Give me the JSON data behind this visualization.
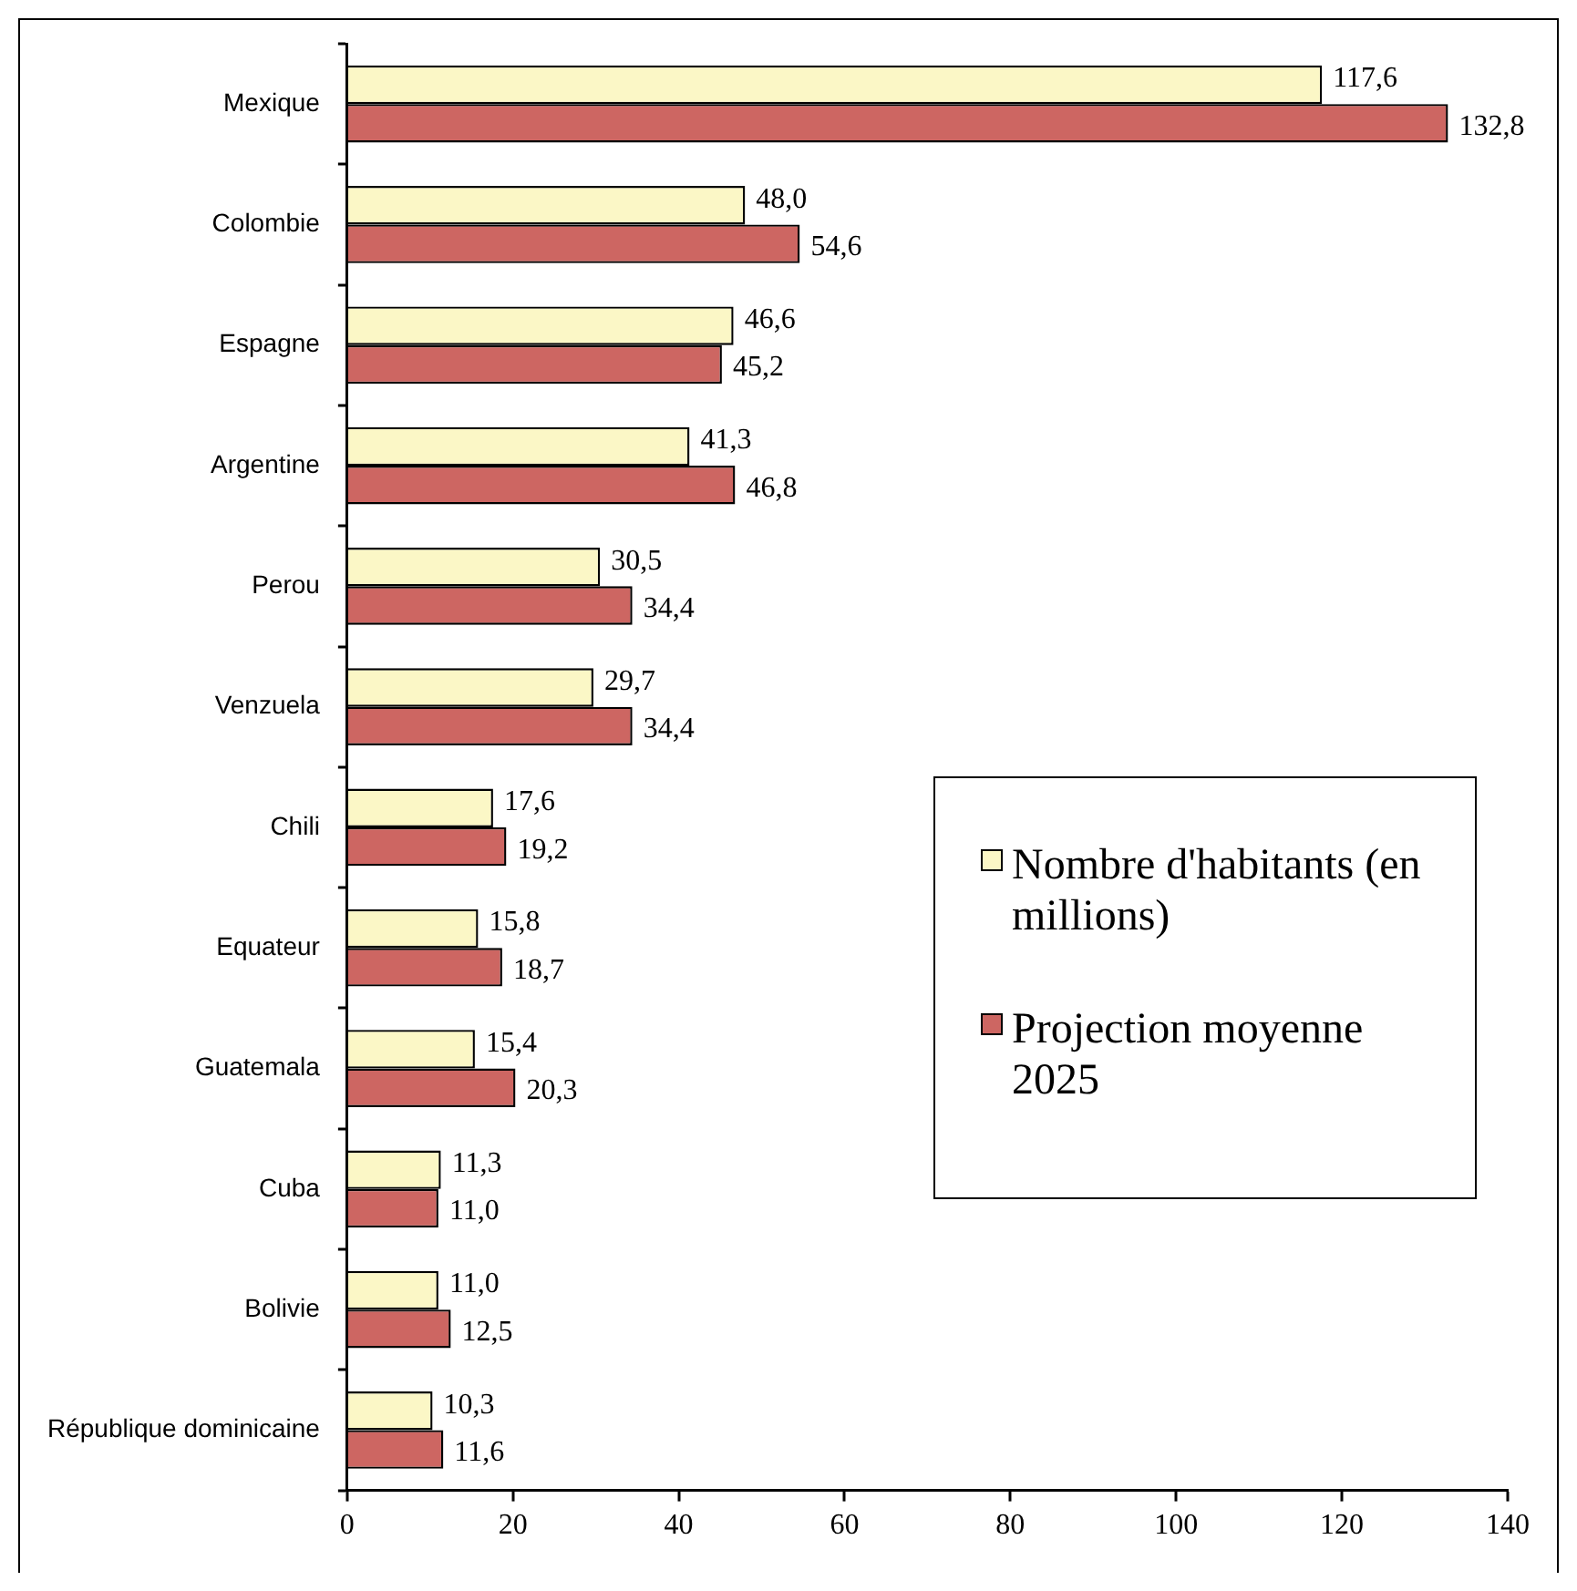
{
  "chart_data": {
    "type": "bar",
    "orientation": "horizontal",
    "categories": [
      "Mexique",
      "Colombie",
      "Espagne",
      "Argentine",
      "Perou",
      "Venzuela",
      "Chili",
      "Equateur",
      "Guatemala",
      "Cuba",
      "Bolivie",
      "République dominicaine"
    ],
    "series": [
      {
        "name": "Nombre d'habitants (en millions)",
        "color": "#fbf7c6",
        "values": [
          117.6,
          48.0,
          46.6,
          41.3,
          30.5,
          29.7,
          17.6,
          15.8,
          15.4,
          11.3,
          11.0,
          10.3
        ],
        "value_labels": [
          "117,6",
          "48,0",
          "46,6",
          "41,3",
          "30,5",
          "29,7",
          "17,6",
          "15,8",
          "15,4",
          "11,3",
          "11,0",
          "10,3"
        ]
      },
      {
        "name": "Projection moyenne 2025",
        "color": "#cd6662",
        "values": [
          132.8,
          54.6,
          45.2,
          46.8,
          34.4,
          34.4,
          19.2,
          18.7,
          20.3,
          11.0,
          12.5,
          11.6
        ],
        "value_labels": [
          "132,8",
          "54,6",
          "45,2",
          "46,8",
          "34,4",
          "34,4",
          "19,2",
          "18,7",
          "20,3",
          "11,0",
          "12,5",
          "11,6"
        ]
      }
    ],
    "xlim": [
      0,
      140
    ],
    "xticks": [
      0,
      20,
      40,
      60,
      80,
      100,
      120,
      140
    ],
    "grid": false,
    "legend": "right"
  }
}
